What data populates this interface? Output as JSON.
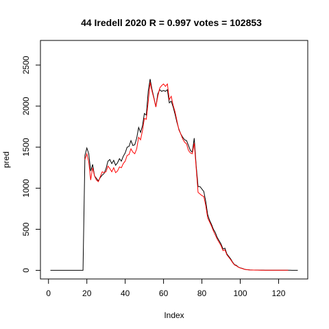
{
  "chart_data": {
    "type": "line",
    "title": "44 Iredell 2020 R = 0.997 votes = 102853",
    "xlabel": "Index",
    "ylabel": "pred",
    "xlim": [
      1,
      130
    ],
    "ylim": [
      0,
      2800
    ],
    "x_ticks": [
      0,
      20,
      40,
      60,
      80,
      100,
      120
    ],
    "y_ticks": [
      0,
      500,
      1000,
      1500,
      2000,
      2500
    ],
    "series": [
      {
        "color": "#000000",
        "values": [
          0,
          0,
          0,
          0,
          0,
          0,
          0,
          0,
          0,
          0,
          0,
          0,
          0,
          0,
          0,
          0,
          0,
          0,
          1400,
          1490,
          1420,
          1210,
          1290,
          1150,
          1120,
          1090,
          1130,
          1160,
          1180,
          1240,
          1330,
          1350,
          1300,
          1340,
          1280,
          1310,
          1360,
          1330,
          1390,
          1430,
          1500,
          1510,
          1580,
          1520,
          1530,
          1610,
          1740,
          1680,
          1760,
          1910,
          1890,
          2180,
          2330,
          2200,
          2100,
          1990,
          2150,
          2200,
          2180,
          2190,
          2180,
          2200,
          2040,
          2060,
          1990,
          1900,
          1800,
          1720,
          1660,
          1620,
          1590,
          1580,
          1520,
          1460,
          1440,
          1610,
          1280,
          1020,
          1020,
          990,
          960,
          840,
          680,
          610,
          560,
          500,
          460,
          400,
          360,
          320,
          260,
          270,
          200,
          170,
          140,
          100,
          70,
          60,
          40,
          30,
          25,
          15,
          10,
          8,
          6,
          5,
          4,
          3,
          3,
          2,
          2,
          2,
          1,
          1,
          1,
          1,
          1,
          1,
          1,
          1,
          1,
          1,
          1,
          1,
          1,
          1,
          0,
          0,
          0,
          0
        ]
      },
      {
        "color": "#ff0000",
        "values": [
          null,
          null,
          null,
          null,
          null,
          null,
          null,
          null,
          null,
          null,
          null,
          null,
          null,
          null,
          null,
          null,
          null,
          null,
          1350,
          1420,
          1320,
          1100,
          1250,
          1150,
          1100,
          1080,
          1140,
          1200,
          1190,
          1200,
          1270,
          1240,
          1200,
          1250,
          1190,
          1210,
          1260,
          1250,
          1300,
          1330,
          1400,
          1410,
          1480,
          1440,
          1420,
          1480,
          1620,
          1590,
          1700,
          1850,
          1840,
          2050,
          2290,
          2180,
          2090,
          1990,
          2120,
          2220,
          2250,
          2270,
          2240,
          2270,
          2080,
          2120,
          2010,
          1930,
          1820,
          1710,
          1660,
          1600,
          1560,
          1540,
          1460,
          1430,
          1420,
          1550,
          1250,
          950,
          930,
          910,
          900,
          790,
          640,
          590,
          540,
          480,
          430,
          380,
          340,
          300,
          240,
          250,
          190,
          160,
          130,
          95,
          65,
          55,
          38,
          28,
          22,
          14,
          9,
          7,
          5,
          4,
          3,
          2,
          2,
          2,
          1,
          1,
          1,
          1,
          1,
          1,
          1,
          1,
          1,
          1,
          1,
          1,
          1,
          1,
          1,
          null,
          null,
          null,
          null
        ]
      }
    ]
  }
}
